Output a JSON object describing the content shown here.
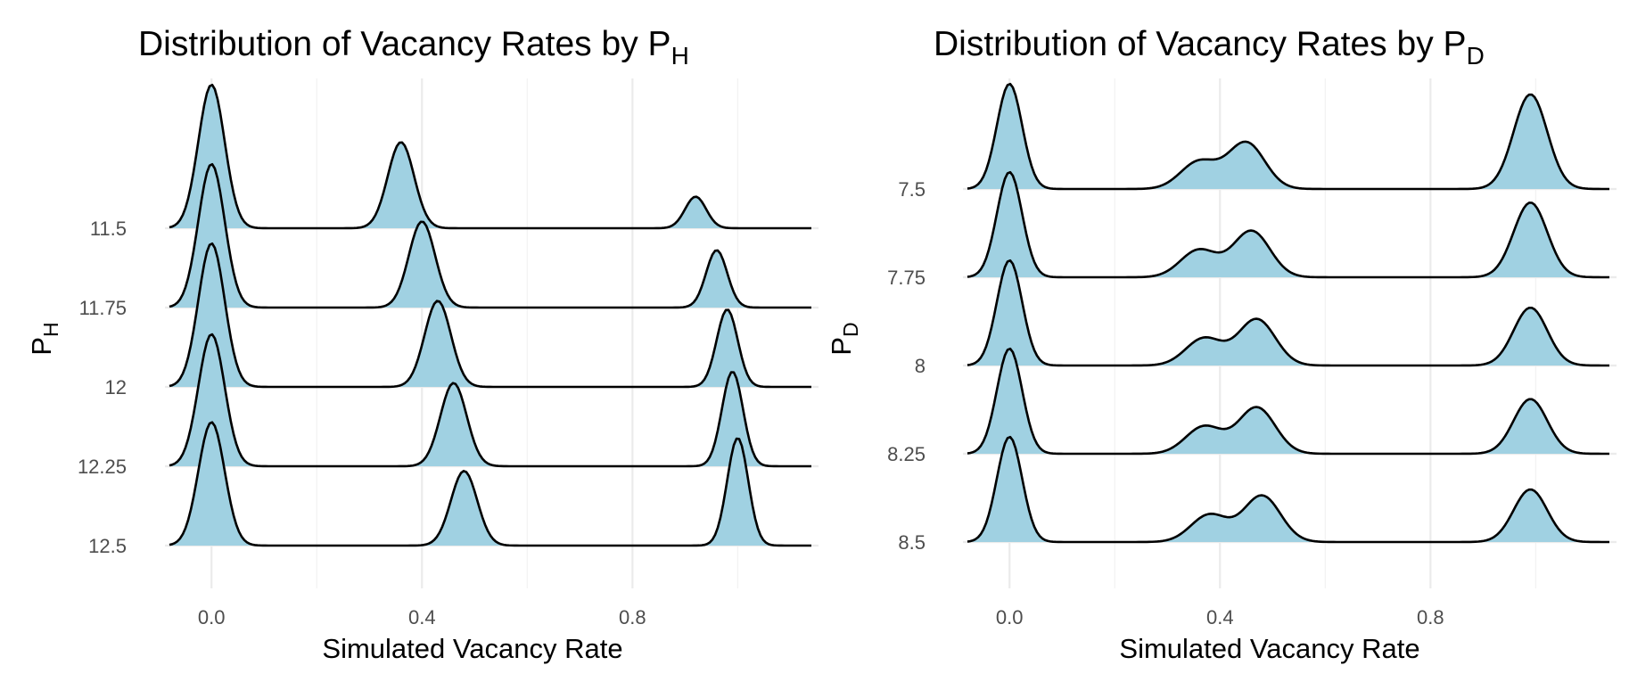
{
  "chart_data": [
    {
      "type": "ridgeline",
      "title_parts": [
        "Distribution of Vacancy Rates by P",
        "H"
      ],
      "xlabel": "Simulated Vacancy Rate",
      "ylabel_parts": [
        "P",
        "H"
      ],
      "xlim": [
        -0.08,
        1.14
      ],
      "x_ticks": [
        0.0,
        0.4,
        0.8
      ],
      "x_tick_labels": [
        "0.0",
        "0.4",
        "0.8"
      ],
      "categories": [
        "11.5",
        "11.75",
        "12",
        "12.25",
        "12.5"
      ],
      "fill_color": "#a0d1e2",
      "line_color": "#000000",
      "grid": true,
      "legend": "none",
      "series": [
        {
          "category": "11.5",
          "components": [
            {
              "mu": 0.0,
              "sd": 0.025,
              "h": 1.0
            },
            {
              "mu": 0.36,
              "sd": 0.025,
              "h": 0.6
            },
            {
              "mu": 0.92,
              "sd": 0.02,
              "h": 0.22
            }
          ]
        },
        {
          "category": "11.75",
          "components": [
            {
              "mu": 0.0,
              "sd": 0.025,
              "h": 1.0
            },
            {
              "mu": 0.4,
              "sd": 0.025,
              "h": 0.6
            },
            {
              "mu": 0.96,
              "sd": 0.02,
              "h": 0.4
            }
          ]
        },
        {
          "category": "12",
          "components": [
            {
              "mu": 0.0,
              "sd": 0.025,
              "h": 1.0
            },
            {
              "mu": 0.43,
              "sd": 0.025,
              "h": 0.6
            },
            {
              "mu": 0.98,
              "sd": 0.02,
              "h": 0.54
            }
          ]
        },
        {
          "category": "12.25",
          "components": [
            {
              "mu": 0.0,
              "sd": 0.025,
              "h": 0.92
            },
            {
              "mu": 0.46,
              "sd": 0.025,
              "h": 0.58
            },
            {
              "mu": 0.99,
              "sd": 0.02,
              "h": 0.66
            }
          ]
        },
        {
          "category": "12.5",
          "components": [
            {
              "mu": 0.0,
              "sd": 0.025,
              "h": 0.86
            },
            {
              "mu": 0.48,
              "sd": 0.025,
              "h": 0.52
            },
            {
              "mu": 1.0,
              "sd": 0.02,
              "h": 0.75
            }
          ]
        }
      ]
    },
    {
      "type": "ridgeline",
      "title_parts": [
        "Distribution of Vacancy Rates by P",
        "D"
      ],
      "xlabel": "Simulated Vacancy Rate",
      "ylabel_parts": [
        "P",
        "D"
      ],
      "xlim": [
        -0.08,
        1.14
      ],
      "x_ticks": [
        0.0,
        0.4,
        0.8
      ],
      "x_tick_labels": [
        "0.0",
        "0.4",
        "0.8"
      ],
      "categories": [
        "7.5",
        "7.75",
        "8",
        "8.25",
        "8.5"
      ],
      "fill_color": "#a0d1e2",
      "line_color": "#000000",
      "grid": true,
      "legend": "none",
      "series": [
        {
          "category": "7.5",
          "components": [
            {
              "mu": 0.0,
              "sd": 0.024,
              "h": 1.0
            },
            {
              "mu": 0.36,
              "sd": 0.035,
              "h": 0.26
            },
            {
              "mu": 0.45,
              "sd": 0.035,
              "h": 0.44
            },
            {
              "mu": 0.99,
              "sd": 0.032,
              "h": 0.9
            }
          ]
        },
        {
          "category": "7.75",
          "components": [
            {
              "mu": 0.0,
              "sd": 0.024,
              "h": 1.0
            },
            {
              "mu": 0.36,
              "sd": 0.035,
              "h": 0.26
            },
            {
              "mu": 0.46,
              "sd": 0.035,
              "h": 0.44
            },
            {
              "mu": 0.99,
              "sd": 0.032,
              "h": 0.71
            }
          ]
        },
        {
          "category": "8",
          "components": [
            {
              "mu": 0.0,
              "sd": 0.024,
              "h": 1.0
            },
            {
              "mu": 0.37,
              "sd": 0.035,
              "h": 0.26
            },
            {
              "mu": 0.47,
              "sd": 0.035,
              "h": 0.44
            },
            {
              "mu": 0.99,
              "sd": 0.032,
              "h": 0.55
            }
          ]
        },
        {
          "category": "8.25",
          "components": [
            {
              "mu": 0.0,
              "sd": 0.024,
              "h": 1.0
            },
            {
              "mu": 0.37,
              "sd": 0.035,
              "h": 0.26
            },
            {
              "mu": 0.47,
              "sd": 0.035,
              "h": 0.44
            },
            {
              "mu": 0.99,
              "sd": 0.032,
              "h": 0.52
            }
          ]
        },
        {
          "category": "8.5",
          "components": [
            {
              "mu": 0.0,
              "sd": 0.024,
              "h": 1.0
            },
            {
              "mu": 0.38,
              "sd": 0.035,
              "h": 0.26
            },
            {
              "mu": 0.48,
              "sd": 0.035,
              "h": 0.44
            },
            {
              "mu": 0.99,
              "sd": 0.032,
              "h": 0.5
            }
          ]
        }
      ]
    }
  ]
}
